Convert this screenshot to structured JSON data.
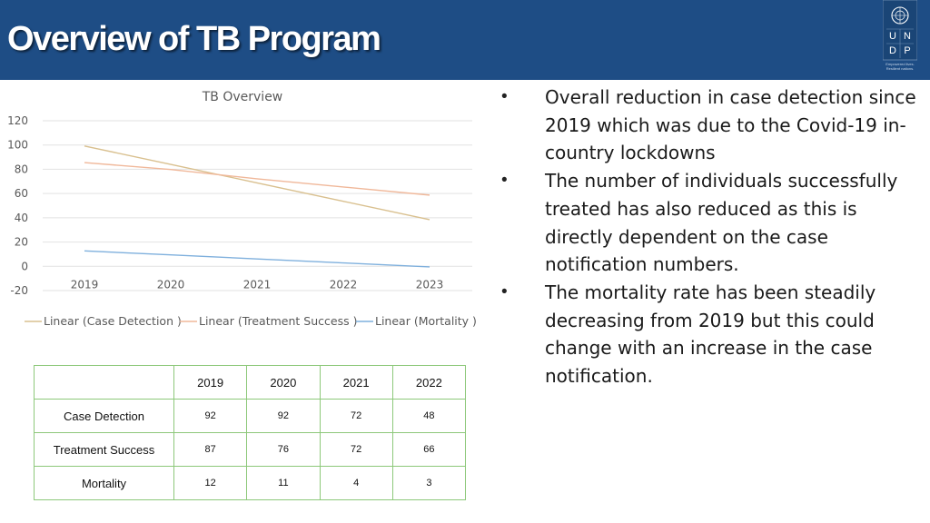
{
  "slide": {
    "title": "Overview of TB Program",
    "logo": {
      "letters": [
        "U",
        "N",
        "D",
        "P"
      ],
      "tagline": "Empowered lives. Resilient nations."
    }
  },
  "colors": {
    "header_bg": "#1e4d85",
    "case_detection": "#d9c08f",
    "treatment_success": "#f0b89a",
    "mortality": "#7fb0dd",
    "table_border": "#8dc87a",
    "gridline": "#e2e2e2"
  },
  "chart_data": {
    "type": "line",
    "title": "TB Overview",
    "categories": [
      "2019",
      "2020",
      "2021",
      "2022",
      "2023"
    ],
    "y_ticks": [
      "120",
      "100",
      "80",
      "60",
      "40",
      "20",
      "0",
      "-20"
    ],
    "ylim": [
      -20,
      120
    ],
    "grid": true,
    "legend_position": "bottom",
    "series": [
      {
        "name": "Linear (Case Detection )",
        "values": [
          99.2,
          84.0,
          68.8,
          53.6,
          38.4
        ]
      },
      {
        "name": "Linear (Treatment Success )",
        "values": [
          85.5,
          79.8,
          72.1,
          65.4,
          58.7
        ]
      },
      {
        "name": "Linear (Mortality )",
        "values": [
          12.7,
          9.4,
          6.1,
          2.8,
          -0.5
        ]
      }
    ]
  },
  "table": {
    "headers": [
      "",
      "2019",
      "2020",
      "2021",
      "2022"
    ],
    "rows": [
      {
        "label": "Case Detection",
        "values": [
          "92",
          "92",
          "72",
          "48"
        ]
      },
      {
        "label": "Treatment Success",
        "values": [
          "87",
          "76",
          "72",
          "66"
        ]
      },
      {
        "label": "Mortality",
        "values": [
          "12",
          "11",
          "4",
          "3"
        ]
      }
    ]
  },
  "bullets": [
    "Overall reduction in case detection since 2019 which was due to the Covid-19 in-country lockdowns",
    "The number of individuals successfully treated has also reduced as this is directly dependent on the case notification numbers.",
    "The mortality rate has been steadily decreasing from 2019 but this could change with an increase in the case notification."
  ],
  "bullet_marker": "•"
}
